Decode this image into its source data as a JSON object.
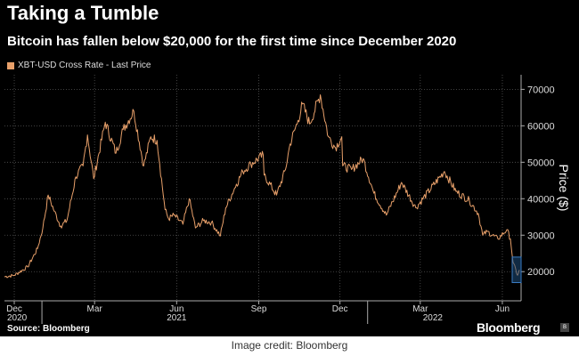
{
  "title": "Taking a Tumble",
  "subtitle": "Bitcoin has fallen below $20,000 for the first time since December 2020",
  "legend": {
    "label": "XBT-USD Cross Rate - Last Price",
    "color": "#e8a06a"
  },
  "source": "Source: Bloomberg",
  "brand": "Bloomberg",
  "credit": "Image credit: Bloomberg",
  "chart_data": {
    "type": "line",
    "title": "Taking a Tumble",
    "ylabel": "Price ($)",
    "xlabel": "",
    "ylim": [
      12000,
      74000
    ],
    "yticks": [
      20000,
      30000,
      40000,
      50000,
      60000,
      70000
    ],
    "ytick_labels": [
      "20000",
      "30000",
      "40000",
      "50000",
      "60000",
      "70000"
    ],
    "xlim": [
      "2020-11-20",
      "2022-06-22"
    ],
    "xticks": [
      {
        "date": "2020-12-01",
        "label": "Dec"
      },
      {
        "date": "2021-03-01",
        "label": "Mar"
      },
      {
        "date": "2021-06-01",
        "label": "Jun"
      },
      {
        "date": "2021-09-01",
        "label": "Sep"
      },
      {
        "date": "2021-12-01",
        "label": "Dec"
      },
      {
        "date": "2022-03-01",
        "label": "Mar"
      },
      {
        "date": "2022-06-01",
        "label": "Jun"
      }
    ],
    "year_labels": [
      {
        "date": "2020-12-01",
        "label": "2020"
      },
      {
        "date": "2021-06-01",
        "label": "2021"
      },
      {
        "date": "2022-03-15",
        "label": "2022"
      }
    ],
    "series": [
      {
        "name": "XBT-USD Cross Rate - Last Price",
        "color": "#e8a06a",
        "points": [
          [
            "2020-11-20",
            18600
          ],
          [
            "2020-12-01",
            19000
          ],
          [
            "2020-12-16",
            21300
          ],
          [
            "2020-12-27",
            26300
          ],
          [
            "2021-01-02",
            32000
          ],
          [
            "2021-01-08",
            41000
          ],
          [
            "2021-01-15",
            36500
          ],
          [
            "2021-01-22",
            32500
          ],
          [
            "2021-01-29",
            34000
          ],
          [
            "2021-02-08",
            46000
          ],
          [
            "2021-02-16",
            49000
          ],
          [
            "2021-02-21",
            57500
          ],
          [
            "2021-02-28",
            45500
          ],
          [
            "2021-03-13",
            61000
          ],
          [
            "2021-03-25",
            52500
          ],
          [
            "2021-04-02",
            59000
          ],
          [
            "2021-04-14",
            64000
          ],
          [
            "2021-04-25",
            49000
          ],
          [
            "2021-05-03",
            57000
          ],
          [
            "2021-05-10",
            56000
          ],
          [
            "2021-05-13",
            49500
          ],
          [
            "2021-05-19",
            37000
          ],
          [
            "2021-05-23",
            34500
          ],
          [
            "2021-05-29",
            35500
          ],
          [
            "2021-06-08",
            33000
          ],
          [
            "2021-06-15",
            40000
          ],
          [
            "2021-06-22",
            32000
          ],
          [
            "2021-07-01",
            34000
          ],
          [
            "2021-07-10",
            33500
          ],
          [
            "2021-07-20",
            29800
          ],
          [
            "2021-07-26",
            37500
          ],
          [
            "2021-08-07",
            44000
          ],
          [
            "2021-08-14",
            47500
          ],
          [
            "2021-08-23",
            49500
          ],
          [
            "2021-09-06",
            52000
          ],
          [
            "2021-09-07",
            46500
          ],
          [
            "2021-09-21",
            41000
          ],
          [
            "2021-10-01",
            48000
          ],
          [
            "2021-10-06",
            55000
          ],
          [
            "2021-10-15",
            61500
          ],
          [
            "2021-10-20",
            66000
          ],
          [
            "2021-10-28",
            60500
          ],
          [
            "2021-11-09",
            68500
          ],
          [
            "2021-11-18",
            57000
          ],
          [
            "2021-11-26",
            54000
          ],
          [
            "2021-12-03",
            57000
          ],
          [
            "2021-12-04",
            49000
          ],
          [
            "2021-12-14",
            48000
          ],
          [
            "2021-12-27",
            51000
          ],
          [
            "2022-01-08",
            41500
          ],
          [
            "2022-01-22",
            35500
          ],
          [
            "2022-02-08",
            44500
          ],
          [
            "2022-02-24",
            37500
          ],
          [
            "2022-03-28",
            47500
          ],
          [
            "2022-04-10",
            42000
          ],
          [
            "2022-04-25",
            39500
          ],
          [
            "2022-05-05",
            36000
          ],
          [
            "2022-05-10",
            30000
          ],
          [
            "2022-05-15",
            31000
          ],
          [
            "2022-05-27",
            29000
          ],
          [
            "2022-06-06",
            31500
          ],
          [
            "2022-06-10",
            29000
          ],
          [
            "2022-06-13",
            22500
          ],
          [
            "2022-06-18",
            19000
          ],
          [
            "2022-06-20",
            20500
          ]
        ]
      }
    ],
    "highlight": {
      "x_start": "2022-06-12",
      "x_end": "2022-06-22",
      "y_min": 17000,
      "y_max": 24000
    }
  }
}
